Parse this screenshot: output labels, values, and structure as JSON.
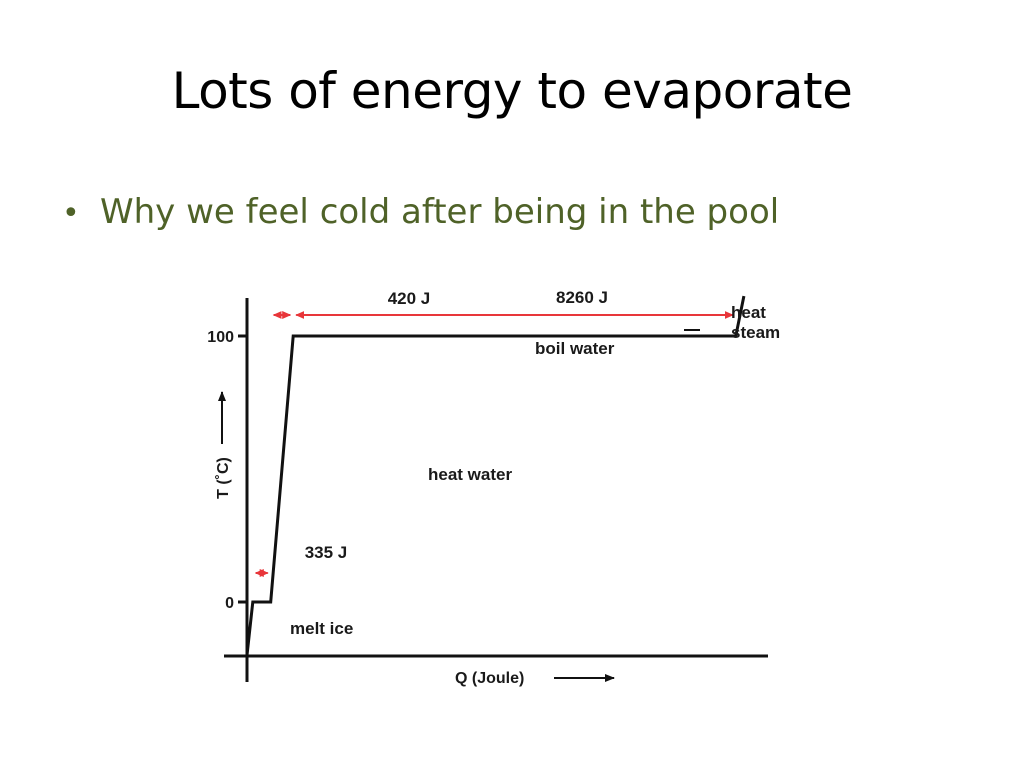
{
  "slide": {
    "title": "Lots of energy to evaporate",
    "bullets": [
      {
        "text": "Why we feel cold after being in the pool"
      }
    ]
  },
  "colors": {
    "bullet_text": "#4f6228",
    "curve": "#111111",
    "energy_arrow": "#e8363a"
  },
  "chart_data": {
    "type": "line",
    "xlabel": "Q (Joule)",
    "ylabel": "T (˚C)",
    "ticks_y": [
      0,
      100
    ],
    "tick_labels_y": [
      "0",
      "100"
    ],
    "series": [
      {
        "x": [
          0,
          108,
          443,
          863,
          9123,
          9273
        ],
        "y": [
          -20,
          0,
          0,
          100,
          100,
          115
        ]
      }
    ],
    "xlim": [
      0,
      9723
    ],
    "ylim": [
      -20,
      120
    ],
    "grid": false,
    "energy_labels": [
      {
        "label": "335 J",
        "from": 108,
        "to": 443,
        "level": 0
      },
      {
        "label": "420 J",
        "from": 443,
        "to": 863,
        "level": 100
      },
      {
        "label": "8260 J",
        "from": 863,
        "to": 9123,
        "level": 100
      }
    ],
    "phase_labels": [
      {
        "label": "melt ice"
      },
      {
        "label": "heat water"
      },
      {
        "label": "boil water"
      },
      {
        "label": "heat",
        "line2": "steam"
      }
    ]
  }
}
